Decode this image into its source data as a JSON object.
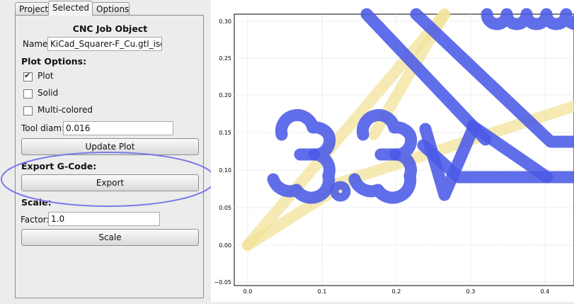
{
  "tabs": [
    "Project",
    "Selected",
    "Options"
  ],
  "panel": {
    "title": "CNC Job Object",
    "name_label": "Name:",
    "name_value": "KiCad_Squarer-F_Cu.gtl_iso.",
    "plot_options_heading": "Plot Options:",
    "plot_label": "Plot",
    "plot_checked": true,
    "solid_label": "Solid",
    "solid_checked": false,
    "multicolored_label": "Multi-colored",
    "multicolored_checked": false,
    "tool_diam_label": "Tool diam:",
    "tool_diam_value": "0.016",
    "update_plot_button": "Update Plot",
    "export_heading": "Export G-Code:",
    "export_button": "Export",
    "scale_heading": "Scale:",
    "factor_label": "Factor:",
    "factor_value": "1.0",
    "scale_button": "Scale"
  },
  "plot": {
    "x_ticks": [
      "0.0",
      "0.1",
      "0.2",
      "0.3",
      "0.4"
    ],
    "y_ticks": [
      "0.30",
      "0.25",
      "0.20",
      "0.15",
      "0.10",
      "0.05",
      "0.00",
      "−0.05"
    ]
  },
  "colors": {
    "path_blue": "#4a5ae6",
    "travel_yellow": "#f3e7a0",
    "highlight_circle": "#7b7bea"
  }
}
